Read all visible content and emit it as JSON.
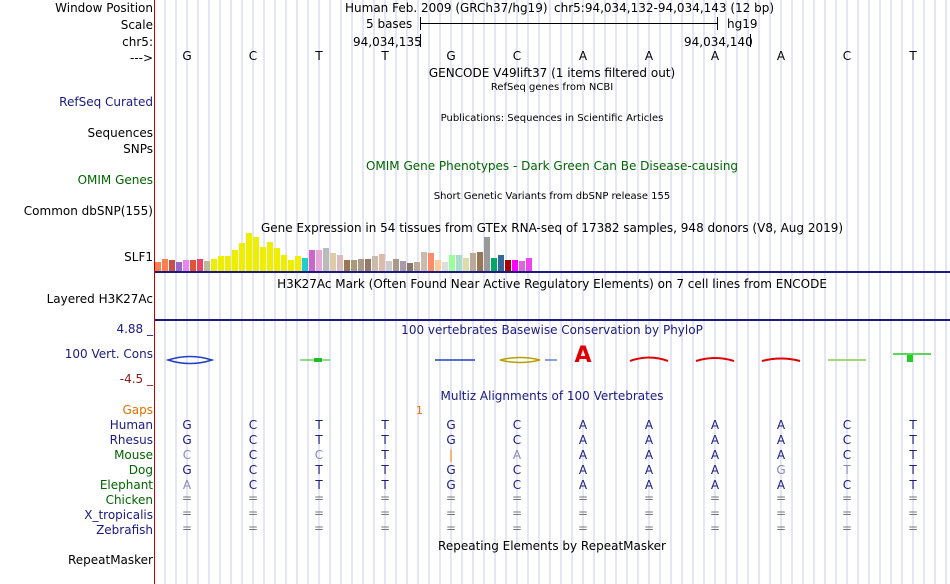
{
  "header": {
    "window_position_label": "Window Position",
    "assembly": "Human Feb. 2009 (GRCh37/hg19)",
    "coords": "chr5:94,034,132-94,034,143 (12 bp)",
    "scale_label": "Scale",
    "scale_bases": "5 bases",
    "scale_db": "hg19",
    "chrom_label": "chr5:",
    "pos_left": "94,034,135",
    "pos_right": "94,034,140",
    "strand_label": "--->"
  },
  "sequence": [
    "G",
    "C",
    "T",
    "T",
    "G",
    "C",
    "A",
    "A",
    "A",
    "A",
    "C",
    "T"
  ],
  "tracks": {
    "gencode_title": "GENCODE V49lift37 (1 items filtered out)",
    "refseq_subtitle": "RefSeq genes from NCBI",
    "refseq_label": "RefSeq Curated",
    "publications_title": "Publications: Sequences in Scientific Articles",
    "sequences_label": "Sequences",
    "snps_label": "SNPs",
    "omim_title": "OMIM Gene Phenotypes - Dark Green Can Be Disease-causing",
    "omim_label": "OMIM Genes",
    "dbsnp_title": "Short Genetic Variants from dbSNP release 155",
    "dbsnp_label": "Common dbSNP(155)",
    "gtex_title": "Gene Expression in 54 tissues from GTEx RNA-seq of 17382 samples, 948 donors (V8, Aug 2019)",
    "gtex_label": "SLF1",
    "h3k27_title": "H3K27Ac Mark (Often Found Near Active Regulatory Elements) on 7 cell lines from ENCODE",
    "h3k27_label": "Layered H3K27Ac",
    "phylop_title": "100 vertebrates Basewise Conservation by PhyloP",
    "phylop_max": "4.88 _",
    "phylop_label": "100 Vert. Cons",
    "phylop_min": "-4.5 _",
    "multiz_title": "Multiz Alignments of 100 Vertebrates",
    "gaps_label": "Gaps",
    "gap_count": "1",
    "repeat_title": "Repeating Elements by RepeatMasker",
    "repeat_label": "RepeatMasker"
  },
  "gtex_bars": [
    {
      "h": 9,
      "c": "#ff7f50"
    },
    {
      "h": 12,
      "c": "#ff7f50"
    },
    {
      "h": 11,
      "c": "#c5504a"
    },
    {
      "h": 9,
      "c": "#9966cc"
    },
    {
      "h": 11,
      "c": "#ee82ee"
    },
    {
      "h": 11,
      "c": "#dd5533"
    },
    {
      "h": 12,
      "c": "#ee4466"
    },
    {
      "h": 10,
      "c": "#bbbb99"
    },
    {
      "h": 12,
      "c": "#eeee00"
    },
    {
      "h": 15,
      "c": "#eeee00"
    },
    {
      "h": 15,
      "c": "#eeee00"
    },
    {
      "h": 21,
      "c": "#eeee00"
    },
    {
      "h": 28,
      "c": "#eeee00"
    },
    {
      "h": 38,
      "c": "#eeee00"
    },
    {
      "h": 34,
      "c": "#eeee00"
    },
    {
      "h": 24,
      "c": "#eeee00"
    },
    {
      "h": 29,
      "c": "#eeee00"
    },
    {
      "h": 23,
      "c": "#eeee00"
    },
    {
      "h": 16,
      "c": "#eeee00"
    },
    {
      "h": 11,
      "c": "#eeee00"
    },
    {
      "h": 15,
      "c": "#eeee00"
    },
    {
      "h": 13,
      "c": "#22cccc"
    },
    {
      "h": 21,
      "c": "#cc66cc"
    },
    {
      "h": 21,
      "c": "#e6a8d7"
    },
    {
      "h": 23,
      "c": "#bbbbbb"
    },
    {
      "h": 18,
      "c": "#ddccaa"
    },
    {
      "h": 16,
      "c": "#ddbbbb"
    },
    {
      "h": 11,
      "c": "#997755"
    },
    {
      "h": 11,
      "c": "#aa9977"
    },
    {
      "h": 12,
      "c": "#aa9988"
    },
    {
      "h": 12,
      "c": "#997766"
    },
    {
      "h": 15,
      "c": "#ccbbaa"
    },
    {
      "h": 17,
      "c": "#ddbbaa"
    },
    {
      "h": 10,
      "c": "#cccccc"
    },
    {
      "h": 12,
      "c": "#aa9988"
    },
    {
      "h": 10,
      "c": "#aa99aa"
    },
    {
      "h": 8,
      "c": "#887766"
    },
    {
      "h": 9,
      "c": "#bbaa99"
    },
    {
      "h": 19,
      "c": "#ccbbaa"
    },
    {
      "h": 18,
      "c": "#ff8c69"
    },
    {
      "h": 11,
      "c": "#ffcc99"
    },
    {
      "h": 9,
      "c": "#dddddd"
    },
    {
      "h": 16,
      "c": "#99ff99"
    },
    {
      "h": 16,
      "c": "#aaddcc"
    },
    {
      "h": 13,
      "c": "#ddddaa"
    },
    {
      "h": 18,
      "c": "#bbaa99"
    },
    {
      "h": 19,
      "c": "#997755"
    },
    {
      "h": 34,
      "c": "#999999"
    },
    {
      "h": 13,
      "c": "#00aa66"
    },
    {
      "h": 16,
      "c": "#336699"
    },
    {
      "h": 11,
      "c": "#aa0000"
    },
    {
      "h": 11,
      "c": "#ff00ff"
    },
    {
      "h": 10,
      "c": "#dd66dd"
    },
    {
      "h": 13,
      "c": "#ee44ee"
    }
  ],
  "alignment": [
    {
      "species": "Human",
      "color": "#1a1a80",
      "bases": [
        "G",
        "C",
        "T",
        "T",
        "G",
        "C",
        "A",
        "A",
        "A",
        "A",
        "C",
        "T"
      ]
    },
    {
      "species": "Rhesus",
      "color": "#1a1a80",
      "bases": [
        "G",
        "C",
        "T",
        "T",
        "G",
        "C",
        "A",
        "A",
        "A",
        "A",
        "C",
        "T"
      ]
    },
    {
      "species": "Mouse",
      "color": "#006400",
      "bases": [
        "C",
        "C",
        "C",
        "T",
        "|",
        "A",
        "A",
        "A",
        "A",
        "A",
        "C",
        "T"
      ]
    },
    {
      "species": "Dog",
      "color": "#006400",
      "bases": [
        "G",
        "C",
        "T",
        "T",
        "G",
        "C",
        "A",
        "A",
        "A",
        "G",
        "T",
        "T"
      ]
    },
    {
      "species": "Elephant",
      "color": "#006400",
      "bases": [
        "A",
        "C",
        "T",
        "T",
        "G",
        "C",
        "A",
        "A",
        "A",
        "A",
        "C",
        "T"
      ]
    },
    {
      "species": "Chicken",
      "color": "#006400",
      "bases": [
        "=",
        "=",
        "=",
        "=",
        "=",
        "=",
        "=",
        "=",
        "=",
        "=",
        "=",
        "="
      ]
    },
    {
      "species": "X_tropicalis",
      "color": "#1a1a80",
      "bases": [
        "=",
        "=",
        "=",
        "=",
        "=",
        "=",
        "=",
        "=",
        "=",
        "=",
        "=",
        "="
      ]
    },
    {
      "species": "Zebrafish",
      "color": "#1a1a80",
      "bases": [
        "=",
        "=",
        "=",
        "=",
        "=",
        "=",
        "=",
        "=",
        "=",
        "=",
        "=",
        "="
      ]
    }
  ],
  "colors": {
    "accent": "#1a1a80",
    "omim": "#006400",
    "gaps": "#e07000",
    "phylop_min": "#8b1a1a",
    "conserved": "#e00000"
  }
}
